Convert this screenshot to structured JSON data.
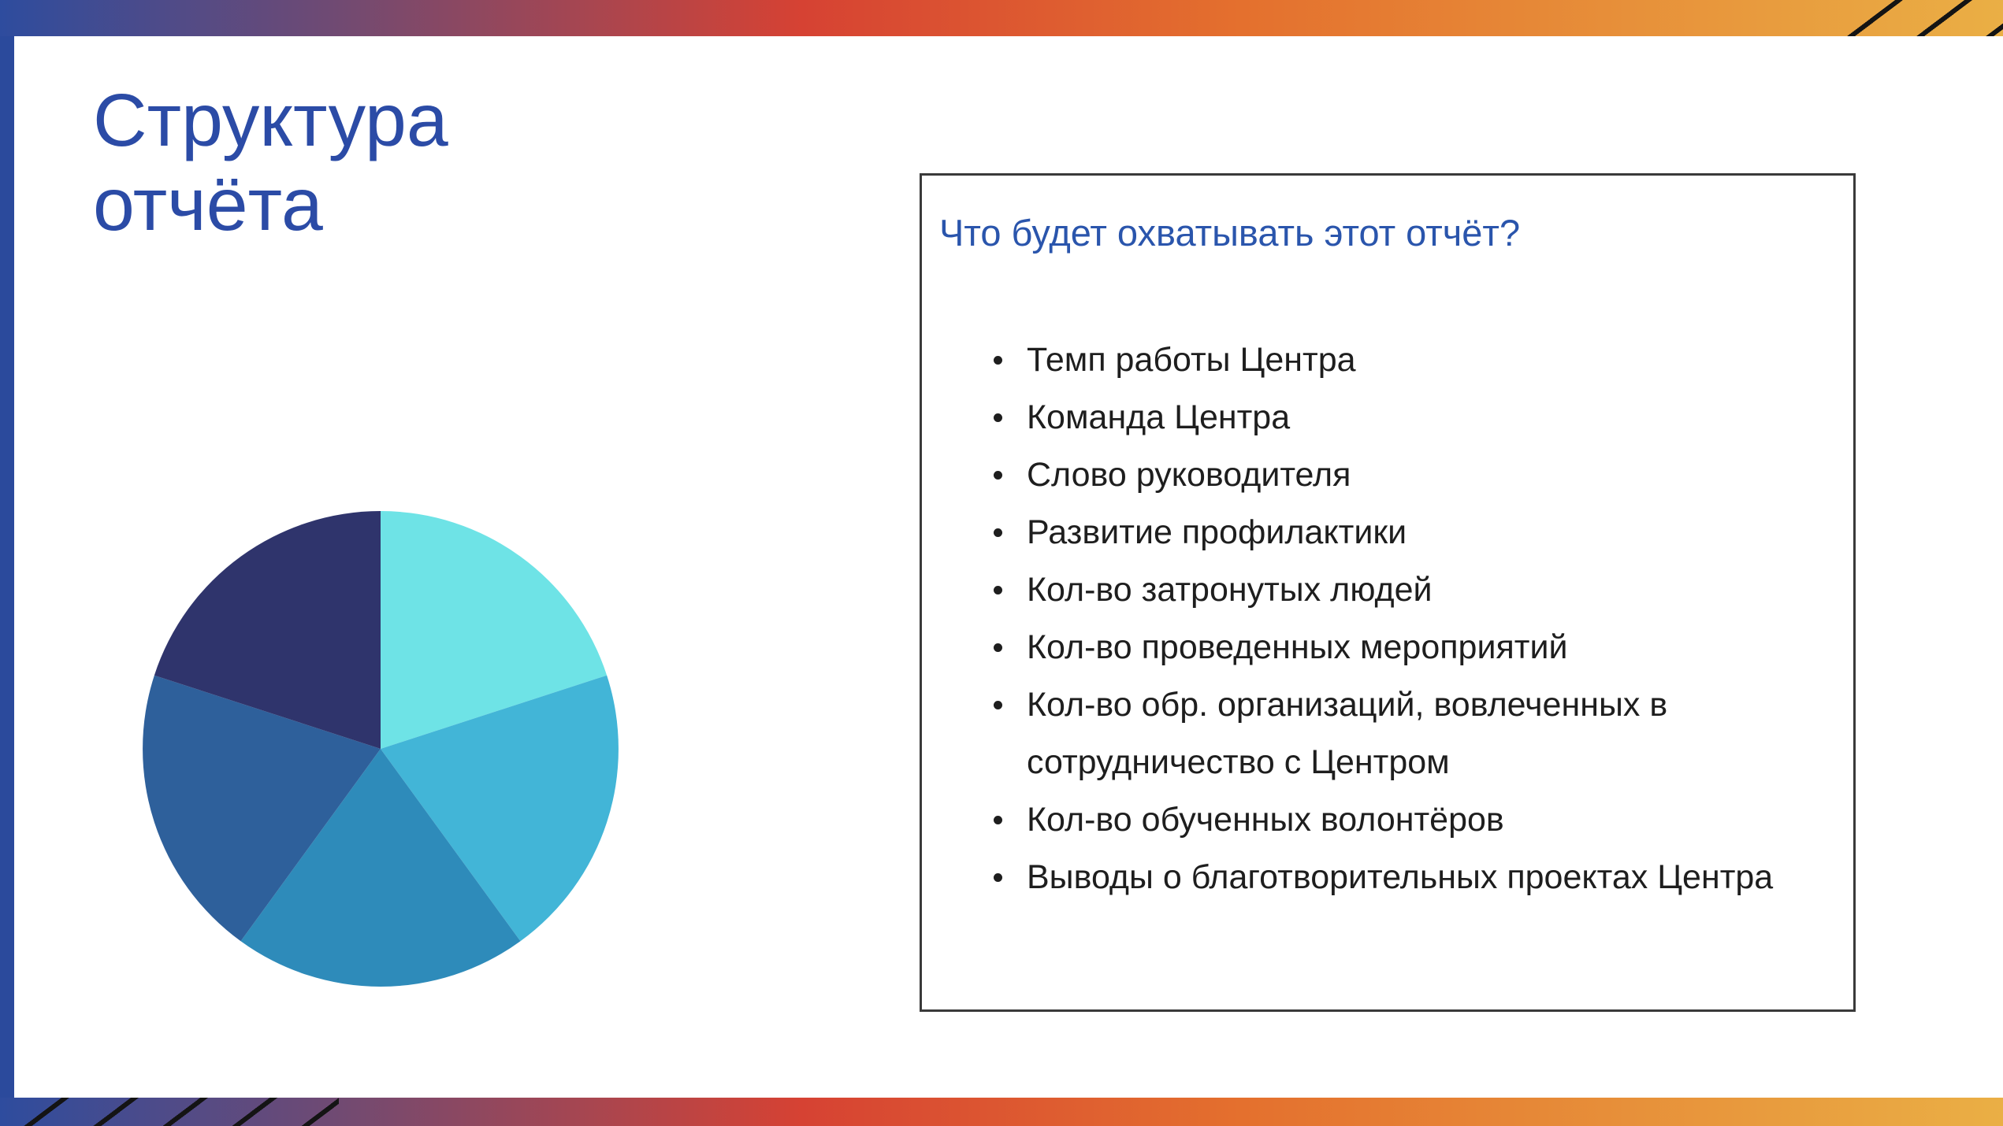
{
  "slide": {
    "title": "Структура отчёта"
  },
  "panel": {
    "heading": "Что будет охватывать этот отчёт?",
    "items": [
      "Темп работы Центра",
      "Команда Центра",
      "Слово руководителя",
      "Развитие профилактики",
      "Кол-во затронутых людей",
      "Кол-во проведенных мероприятий",
      "Кол-во обр. организаций, вовлеченных в сотрудничество с Центром",
      "Кол-во обученных волонтёров",
      "Выводы о благотворительных проектах Центра"
    ]
  },
  "pie": {
    "chart_data": {
      "type": "pie",
      "title": "",
      "labels": [],
      "values": [
        20,
        20,
        20,
        20,
        20
      ],
      "colors": [
        "#6ee3e6",
        "#42b5d7",
        "#2e8bba",
        "#2e609b",
        "#2f346c"
      ],
      "start_angle_deg": 0,
      "direction": "clockwise",
      "legend": "none"
    }
  },
  "theme": {
    "title-blue": "#2b4ba6",
    "heading-blue": "#2a55ac",
    "body-text": "#1e1e1e",
    "panel-border": "#3a3a3a",
    "frame-left-blue": "#2b4a9c",
    "hatch-black": "#141414",
    "frame-gradient-stops": [
      "#2e4c9e",
      "#714a72",
      "#d64233",
      "#e4702e",
      "#eaaf45"
    ],
    "frame-gradient-positions": [
      "0%",
      "17%",
      "40%",
      "62%",
      "100%"
    ]
  }
}
